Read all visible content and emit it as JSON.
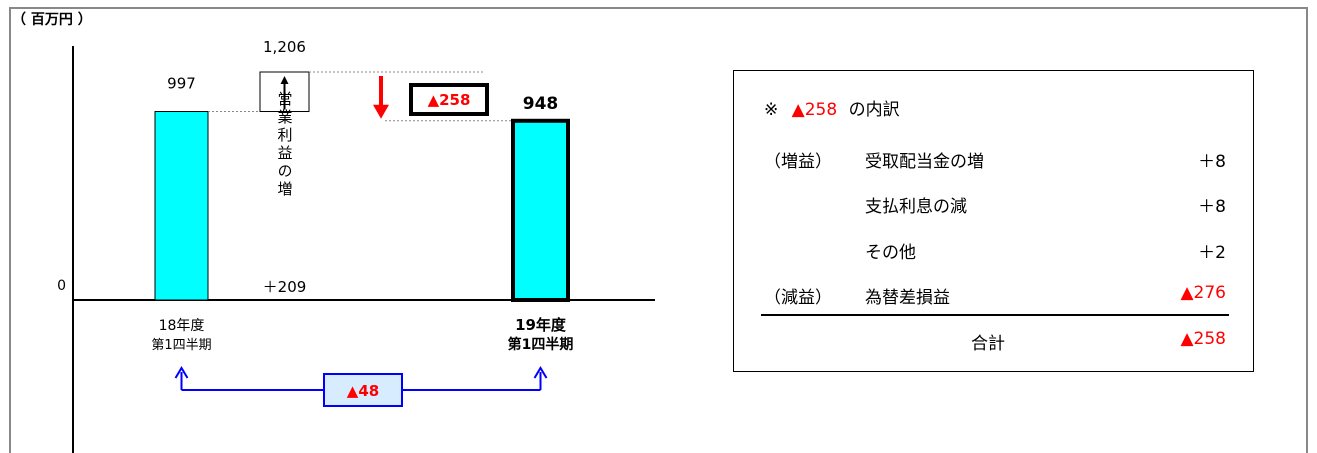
{
  "unit_label": "（ 百万円 ）",
  "chart_data": {
    "type": "bar",
    "categories": [
      {
        "line1": "18年度",
        "line2": "第1四半期"
      },
      {
        "line1": "19年度",
        "line2": "第1四半期"
      }
    ],
    "values": [
      997,
      948
    ],
    "value_labels": [
      "997",
      "948"
    ],
    "zero_label": "0",
    "ylim": [
      0,
      1300
    ],
    "bridge": {
      "increase_value": 209,
      "increase_label": "＋209",
      "increase_top_value": 1206,
      "increase_top_label": "1,206",
      "increase_vertical_text": "営業利益の増",
      "decrease_value": -258,
      "decrease_label": "▲258"
    },
    "difference_label": "▲48",
    "colors": {
      "bar": "#00ffff",
      "accent_red": "#ff0000",
      "bracket_blue": "#0000ff"
    }
  },
  "breakdown": {
    "title_prefix": "※",
    "title_value": "▲258",
    "title_suffix": "の内訳",
    "rows": [
      {
        "group": "（増益）",
        "label": "受取配当金の増",
        "value": "＋8",
        "negative": false
      },
      {
        "group": "",
        "label": "支払利息の減",
        "value": "＋8",
        "negative": false
      },
      {
        "group": "",
        "label": "その他",
        "value": "＋2",
        "negative": false
      },
      {
        "group": "（減益）",
        "label": "為替差損益",
        "value": "▲276",
        "negative": true
      }
    ],
    "total_label": "合計",
    "total_value": "▲258"
  }
}
